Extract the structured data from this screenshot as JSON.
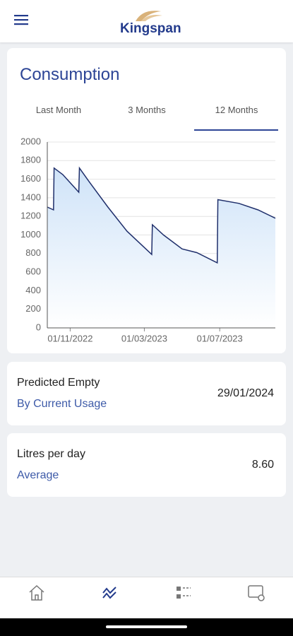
{
  "header": {
    "logo": "Kingspan"
  },
  "consumption": {
    "title": "Consumption",
    "tabs": [
      "Last Month",
      "3 Months",
      "12 Months"
    ]
  },
  "chart_data": {
    "type": "line",
    "color": "#1f2f6b",
    "fill_color": "#cfe3f8",
    "x": [
      "25/09/2022",
      "05/10/2022",
      "06/10/2022",
      "20/10/2022",
      "15/11/2022",
      "16/11/2022",
      "01/12/2022",
      "01/01/2023",
      "01/02/2023",
      "13/03/2023",
      "14/03/2023",
      "01/04/2023",
      "01/05/2023",
      "25/05/2023",
      "27/06/2023",
      "28/06/2023",
      "01/08/2023",
      "01/09/2023",
      "29/09/2023"
    ],
    "values": [
      1300,
      1270,
      1720,
      1650,
      1460,
      1720,
      1580,
      1300,
      1040,
      790,
      1110,
      1000,
      850,
      810,
      700,
      1380,
      1340,
      1270,
      1180
    ],
    "xlim": [
      "25/09/2022",
      "29/09/2023"
    ],
    "xticks": [
      "01/11/2022",
      "01/03/2023",
      "01/07/2023"
    ],
    "ylim": [
      0,
      2000
    ],
    "yticks": [
      0,
      200,
      400,
      600,
      800,
      1000,
      1200,
      1400,
      1600,
      1800,
      2000
    ],
    "grid": true
  },
  "predicted": {
    "label": "Predicted Empty",
    "sublabel": "By Current Usage",
    "value": "29/01/2024"
  },
  "litres": {
    "label": "Litres per day",
    "sublabel": "Average",
    "value": "8.60"
  }
}
